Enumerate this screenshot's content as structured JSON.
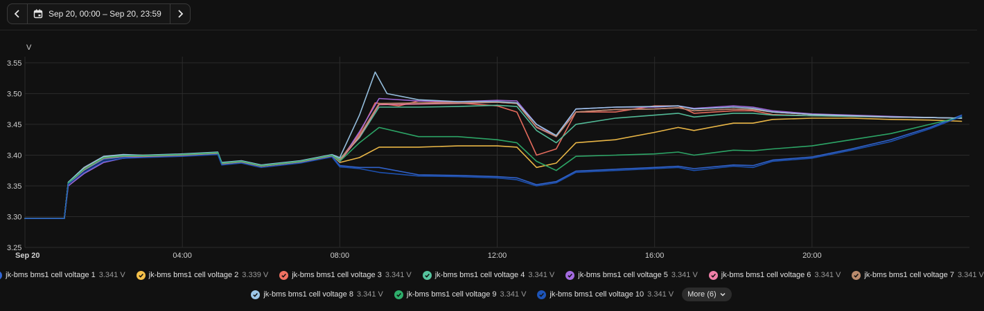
{
  "toolbar": {
    "date_range": "Sep 20, 00:00 – Sep 20, 23:59"
  },
  "chart_data": {
    "type": "line",
    "ylabel": "V",
    "ylim": [
      3.25,
      3.56
    ],
    "xlim_hours": [
      0,
      24
    ],
    "y_ticks": [
      "3.25",
      "3.30",
      "3.35",
      "3.40",
      "3.45",
      "3.50",
      "3.55"
    ],
    "x_ticks": [
      {
        "hour": 0,
        "label": "Sep 20"
      },
      {
        "hour": 4,
        "label": "04:00"
      },
      {
        "hour": 8,
        "label": "08:00"
      },
      {
        "hour": 12,
        "label": "12:00"
      },
      {
        "hour": 16,
        "label": "16:00"
      },
      {
        "hour": 20,
        "label": "20:00"
      }
    ],
    "grid": true,
    "series": [
      {
        "name": "jk-bms bms1 cell voltage 1",
        "value_label": "3.341 V",
        "color": "#3367d6",
        "x": [
          0,
          1,
          1.1,
          1.5,
          2,
          2.5,
          3,
          4,
          4.9,
          5,
          5.5,
          6,
          7,
          7.8,
          8,
          8.5,
          9,
          10,
          11,
          12,
          12.5,
          13,
          13.5,
          14,
          15,
          16,
          16.6,
          17,
          18,
          18.5,
          19,
          20,
          21,
          22,
          23,
          23.8
        ],
        "y": [
          3.297,
          3.297,
          3.355,
          3.375,
          3.393,
          3.397,
          3.397,
          3.399,
          3.402,
          3.385,
          3.388,
          3.382,
          3.388,
          3.398,
          3.383,
          3.38,
          3.38,
          3.368,
          3.367,
          3.365,
          3.363,
          3.352,
          3.357,
          3.374,
          3.377,
          3.38,
          3.382,
          3.378,
          3.384,
          3.383,
          3.392,
          3.397,
          3.41,
          3.425,
          3.445,
          3.465
        ]
      },
      {
        "name": "jk-bms bms1 cell voltage 2",
        "value_label": "3.339 V",
        "color": "#f5c04a",
        "x": [
          0,
          1,
          1.1,
          1.5,
          2,
          2.5,
          3,
          4,
          4.9,
          5,
          5.5,
          6,
          7,
          7.8,
          8,
          8.5,
          9,
          10,
          11,
          12,
          12.5,
          13,
          13.5,
          14,
          15,
          16,
          16.6,
          17,
          18,
          18.5,
          19,
          20,
          21,
          22,
          23,
          23.8
        ],
        "y": [
          3.297,
          3.297,
          3.355,
          3.378,
          3.397,
          3.4,
          3.4,
          3.401,
          3.404,
          3.387,
          3.39,
          3.383,
          3.39,
          3.4,
          3.388,
          3.396,
          3.413,
          3.413,
          3.415,
          3.415,
          3.413,
          3.38,
          3.387,
          3.42,
          3.425,
          3.437,
          3.445,
          3.44,
          3.452,
          3.452,
          3.458,
          3.46,
          3.46,
          3.458,
          3.457,
          3.455
        ]
      },
      {
        "name": "jk-bms bms1 cell voltage 3",
        "value_label": "3.341 V",
        "color": "#f07162",
        "x": [
          0,
          1,
          1.1,
          1.5,
          2,
          2.5,
          3,
          4,
          4.9,
          5,
          5.5,
          6,
          7,
          7.8,
          8,
          8.5,
          8.9,
          9.5,
          10,
          11,
          12,
          12.5,
          13,
          13.5,
          14,
          15,
          16,
          16.6,
          17,
          18,
          18.5,
          19,
          20,
          21,
          22,
          23,
          23.8
        ],
        "y": [
          3.297,
          3.297,
          3.355,
          3.378,
          3.396,
          3.399,
          3.399,
          3.401,
          3.404,
          3.387,
          3.39,
          3.383,
          3.39,
          3.4,
          3.392,
          3.435,
          3.485,
          3.48,
          3.488,
          3.485,
          3.48,
          3.47,
          3.4,
          3.41,
          3.47,
          3.47,
          3.48,
          3.48,
          3.468,
          3.472,
          3.472,
          3.466,
          3.464,
          3.463,
          3.462,
          3.461,
          3.46
        ]
      },
      {
        "name": "jk-bms bms1 cell voltage 4",
        "value_label": "3.341 V",
        "color": "#56c49f",
        "x": [
          0,
          1,
          1.1,
          1.5,
          2,
          2.5,
          3,
          4,
          4.9,
          5,
          5.5,
          6,
          7,
          7.8,
          8,
          8.5,
          9,
          10,
          11,
          12,
          12.5,
          13,
          13.5,
          14,
          15,
          16,
          16.6,
          17,
          18,
          18.5,
          19,
          20,
          21,
          22,
          23,
          23.8
        ],
        "y": [
          3.297,
          3.297,
          3.355,
          3.377,
          3.396,
          3.399,
          3.399,
          3.401,
          3.404,
          3.387,
          3.39,
          3.383,
          3.39,
          3.4,
          3.394,
          3.428,
          3.478,
          3.478,
          3.479,
          3.481,
          3.479,
          3.44,
          3.42,
          3.45,
          3.46,
          3.465,
          3.468,
          3.462,
          3.468,
          3.468,
          3.465,
          3.464,
          3.463,
          3.462,
          3.461,
          3.46
        ]
      },
      {
        "name": "jk-bms bms1 cell voltage 5",
        "value_label": "3.341 V",
        "color": "#a46be0",
        "x": [
          0,
          1,
          1.1,
          1.5,
          2,
          2.5,
          3,
          4,
          4.9,
          5,
          5.5,
          6,
          7,
          7.8,
          8,
          8.5,
          9,
          10,
          11,
          12,
          12.5,
          13,
          13.5,
          14,
          15,
          16,
          16.6,
          17,
          18,
          18.5,
          19,
          20,
          21,
          22,
          23,
          23.8
        ],
        "y": [
          3.297,
          3.297,
          3.35,
          3.37,
          3.388,
          3.395,
          3.397,
          3.399,
          3.404,
          3.387,
          3.39,
          3.383,
          3.39,
          3.4,
          3.389,
          3.438,
          3.492,
          3.488,
          3.487,
          3.489,
          3.488,
          3.45,
          3.43,
          3.475,
          3.478,
          3.478,
          3.48,
          3.476,
          3.48,
          3.478,
          3.472,
          3.467,
          3.465,
          3.463,
          3.461,
          3.46
        ]
      },
      {
        "name": "jk-bms bms1 cell voltage 6",
        "value_label": "3.341 V",
        "color": "#f07fa8",
        "x": [
          0,
          1,
          1.1,
          1.5,
          2,
          2.5,
          3,
          4,
          4.9,
          5,
          5.5,
          6,
          7,
          7.8,
          8,
          8.5,
          9,
          10,
          11,
          12,
          12.5,
          13,
          13.5,
          14,
          15,
          16,
          16.6,
          17,
          18,
          18.5,
          19,
          20,
          21,
          22,
          23,
          23.8
        ],
        "y": [
          3.297,
          3.297,
          3.354,
          3.376,
          3.395,
          3.398,
          3.398,
          3.4,
          3.403,
          3.386,
          3.389,
          3.382,
          3.389,
          3.399,
          3.39,
          3.43,
          3.482,
          3.483,
          3.484,
          3.486,
          3.484,
          3.445,
          3.43,
          3.47,
          3.474,
          3.475,
          3.477,
          3.472,
          3.475,
          3.474,
          3.47,
          3.466,
          3.464,
          3.462,
          3.461,
          3.46
        ]
      },
      {
        "name": "jk-bms bms1 cell voltage 7",
        "value_label": "3.341 V",
        "color": "#b98a6c",
        "x": [
          0,
          1,
          1.1,
          1.5,
          2,
          2.5,
          3,
          4,
          4.9,
          5,
          5.5,
          6,
          7,
          7.8,
          8,
          8.5,
          9,
          10,
          11,
          12,
          12.5,
          13,
          13.5,
          14,
          15,
          16,
          16.6,
          17,
          18,
          18.5,
          19,
          20,
          21,
          22,
          23,
          23.8
        ],
        "y": [
          3.297,
          3.297,
          3.354,
          3.376,
          3.395,
          3.398,
          3.398,
          3.4,
          3.403,
          3.386,
          3.389,
          3.382,
          3.389,
          3.399,
          3.392,
          3.432,
          3.484,
          3.485,
          3.485,
          3.486,
          3.484,
          3.446,
          3.43,
          3.47,
          3.474,
          3.475,
          3.477,
          3.472,
          3.475,
          3.474,
          3.47,
          3.466,
          3.464,
          3.462,
          3.461,
          3.46
        ]
      },
      {
        "name": "jk-bms bms1 cell voltage 8",
        "value_label": "3.341 V",
        "color": "#9cc7e8",
        "x": [
          0,
          1,
          1.1,
          1.5,
          2,
          2.5,
          3,
          4,
          4.9,
          5,
          5.5,
          6,
          7,
          7.8,
          8,
          8.5,
          8.9,
          9.2,
          10,
          11,
          12,
          12.5,
          13,
          13.5,
          14,
          15,
          16,
          16.6,
          17,
          18,
          18.5,
          19,
          20,
          21,
          22,
          23,
          23.8
        ],
        "y": [
          3.297,
          3.297,
          3.356,
          3.38,
          3.398,
          3.401,
          3.4,
          3.402,
          3.405,
          3.388,
          3.391,
          3.384,
          3.391,
          3.401,
          3.396,
          3.465,
          3.535,
          3.5,
          3.49,
          3.487,
          3.487,
          3.485,
          3.45,
          3.432,
          3.475,
          3.478,
          3.479,
          3.48,
          3.475,
          3.478,
          3.476,
          3.47,
          3.466,
          3.464,
          3.462,
          3.461,
          3.46
        ]
      },
      {
        "name": "jk-bms bms1 cell voltage 9",
        "value_label": "3.341 V",
        "color": "#2eae6b",
        "x": [
          0,
          1,
          1.1,
          1.5,
          2,
          2.5,
          3,
          4,
          4.9,
          5,
          5.5,
          6,
          7,
          7.8,
          8,
          8.5,
          9,
          10,
          11,
          12,
          12.5,
          13,
          13.5,
          14,
          15,
          16,
          16.6,
          17,
          18,
          18.5,
          19,
          20,
          21,
          22,
          23,
          23.8
        ],
        "y": [
          3.297,
          3.297,
          3.355,
          3.377,
          3.396,
          3.399,
          3.399,
          3.401,
          3.404,
          3.387,
          3.39,
          3.383,
          3.39,
          3.4,
          3.39,
          3.42,
          3.445,
          3.43,
          3.43,
          3.425,
          3.42,
          3.39,
          3.375,
          3.398,
          3.4,
          3.402,
          3.405,
          3.4,
          3.408,
          3.407,
          3.41,
          3.415,
          3.425,
          3.435,
          3.45,
          3.462
        ]
      },
      {
        "name": "jk-bms bms1 cell voltage 10",
        "value_label": "3.341 V",
        "color": "#1d54b8",
        "x": [
          0,
          1,
          1.1,
          1.5,
          2,
          2.5,
          3,
          4,
          4.9,
          5,
          5.5,
          6,
          7,
          7.8,
          8,
          8.5,
          9,
          10,
          11,
          12,
          12.5,
          13,
          13.5,
          14,
          15,
          16,
          16.6,
          17,
          18,
          18.5,
          19,
          20,
          21,
          22,
          23,
          23.8
        ],
        "y": [
          3.297,
          3.297,
          3.353,
          3.372,
          3.39,
          3.395,
          3.396,
          3.398,
          3.401,
          3.384,
          3.387,
          3.38,
          3.387,
          3.397,
          3.381,
          3.378,
          3.372,
          3.366,
          3.365,
          3.363,
          3.36,
          3.35,
          3.355,
          3.372,
          3.375,
          3.378,
          3.38,
          3.375,
          3.382,
          3.38,
          3.39,
          3.395,
          3.408,
          3.422,
          3.443,
          3.463
        ]
      }
    ]
  },
  "legend": {
    "more_label": "More (6)"
  }
}
